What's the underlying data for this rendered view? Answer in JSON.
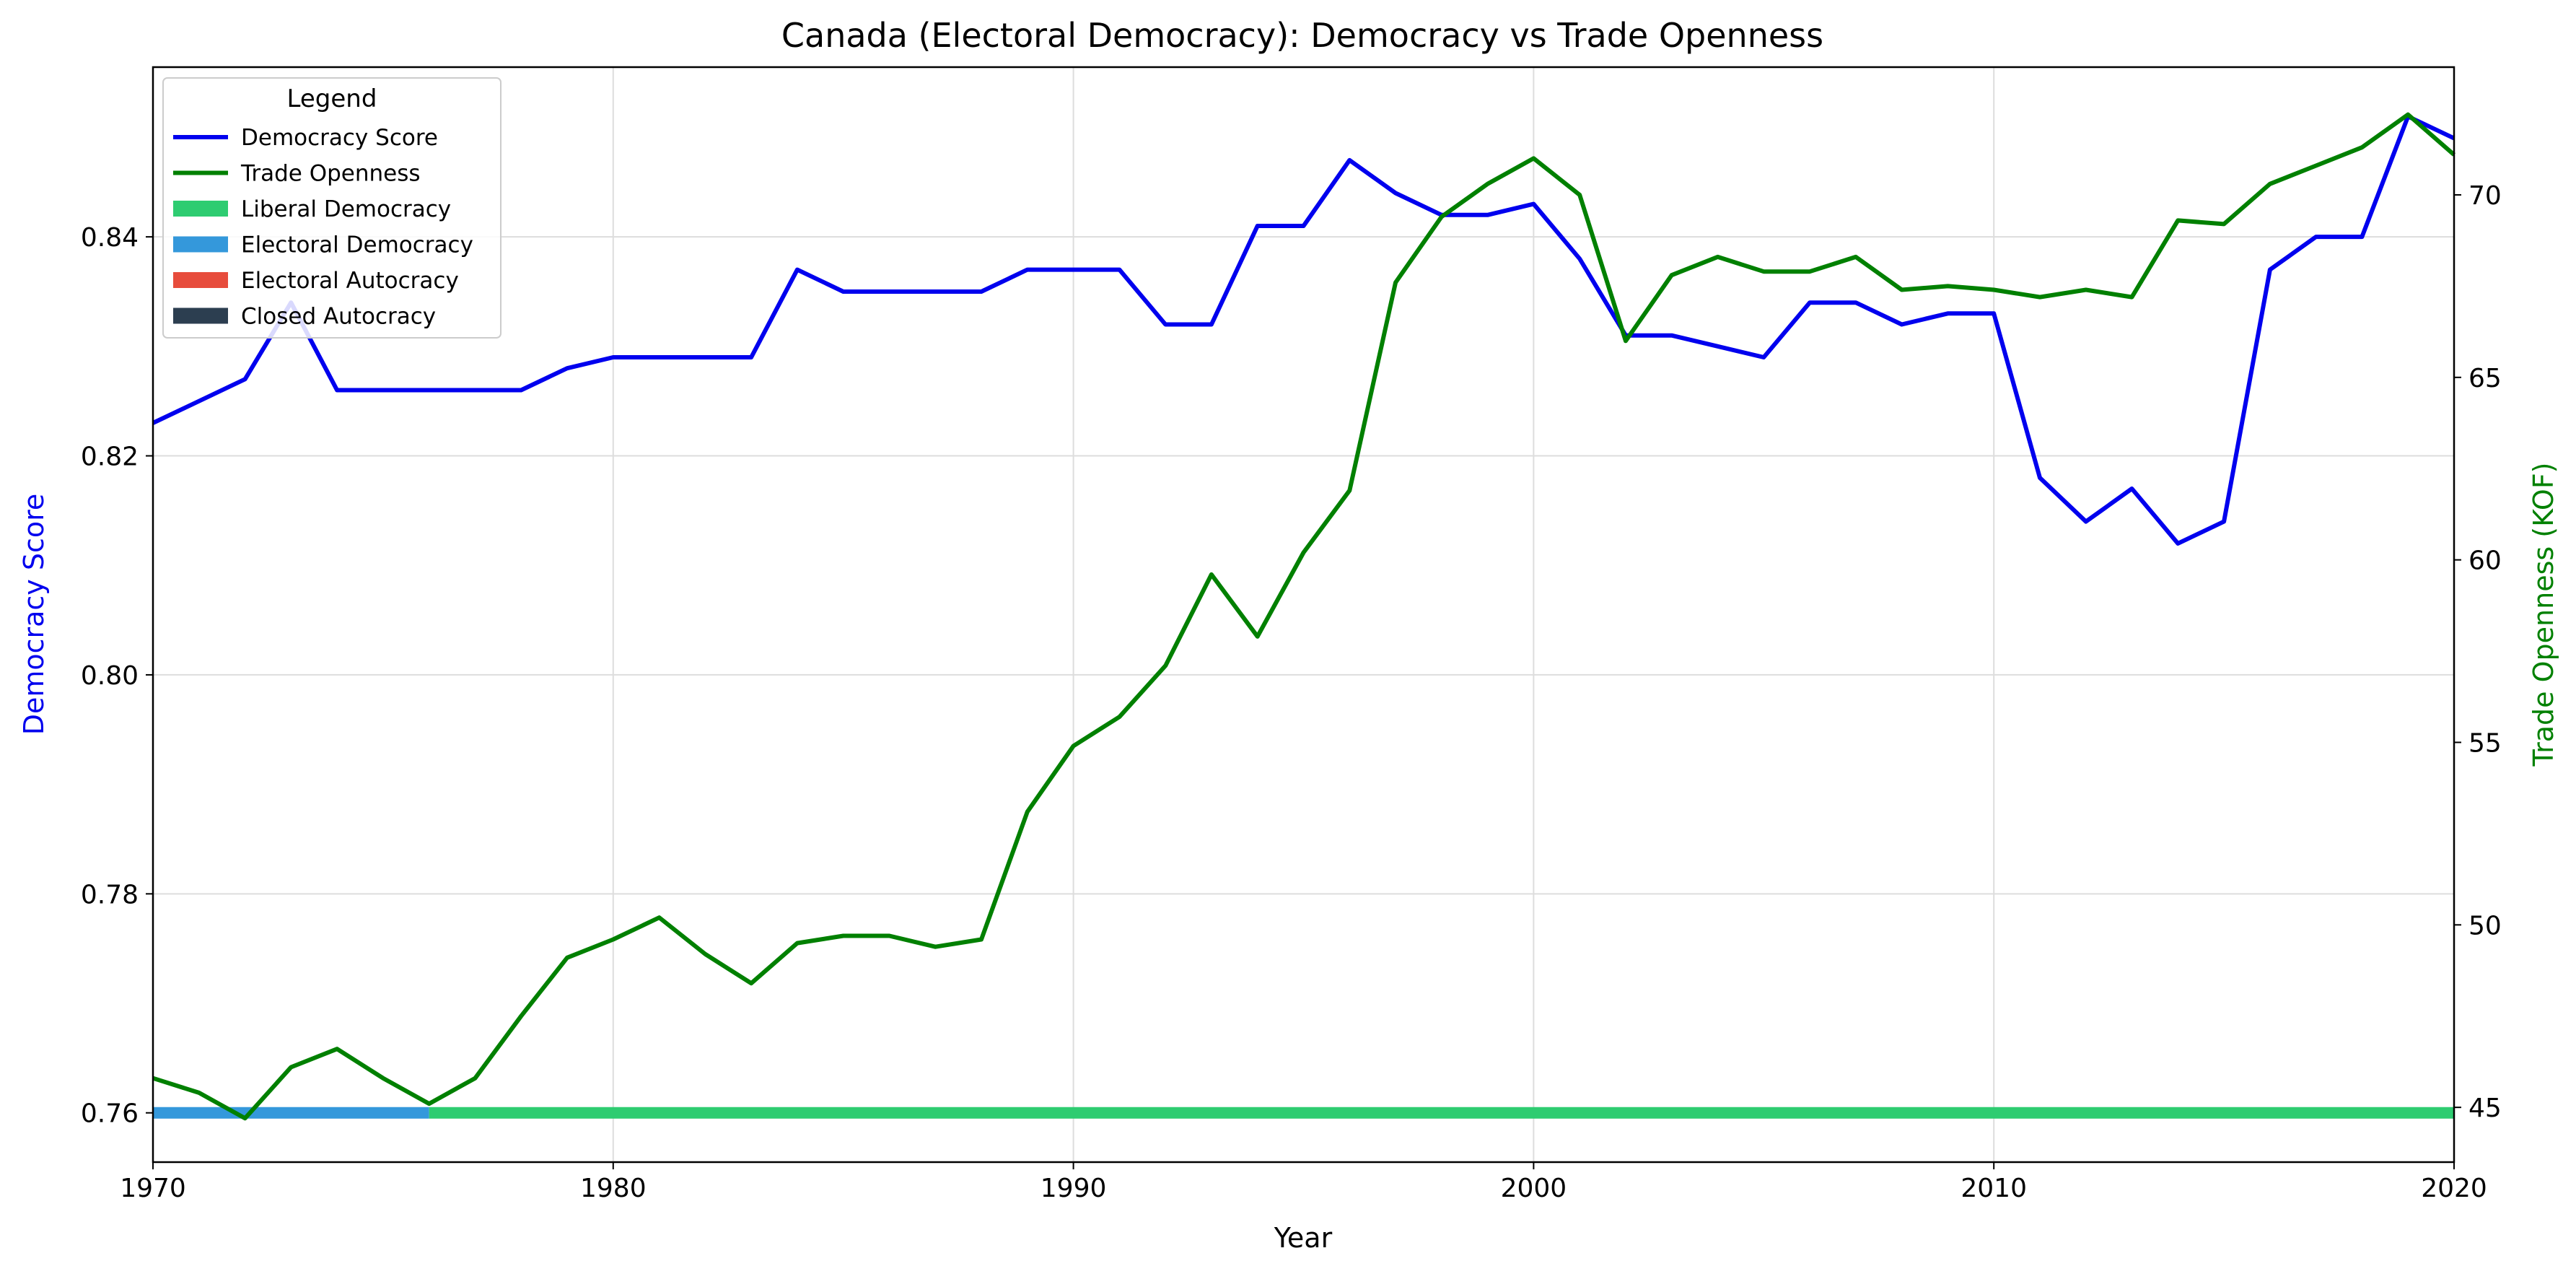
{
  "chart_data": {
    "type": "line",
    "title": "Canada (Electoral Democracy): Democracy vs Trade Openness",
    "xlabel": "Year",
    "ylabel_left": "Democracy Score",
    "ylabel_right": "Trade Openness (KOF)",
    "xlim": [
      1970,
      2020
    ],
    "ylim_left": [
      0.7555,
      0.8555
    ],
    "ylim_right": [
      43.5,
      73.5
    ],
    "x_ticks": [
      1970,
      1980,
      1990,
      2000,
      2010,
      2020
    ],
    "y_left_ticks": [
      0.76,
      0.78,
      0.8,
      0.82,
      0.84
    ],
    "y_left_tick_labels": [
      "0.76",
      "0.78",
      "0.80",
      "0.82",
      "0.84"
    ],
    "y_right_ticks": [
      45,
      50,
      55,
      60,
      65,
      70
    ],
    "grid": true,
    "legend": {
      "title": "Legend",
      "position": "top-left",
      "entries": [
        {
          "label": "Democracy Score",
          "kind": "line",
          "color": "#0000ee"
        },
        {
          "label": "Trade Openness",
          "kind": "line",
          "color": "#008000"
        },
        {
          "label": "Liberal Democracy",
          "kind": "patch",
          "color": "#2ecc71"
        },
        {
          "label": "Electoral Democracy",
          "kind": "patch",
          "color": "#3498db"
        },
        {
          "label": "Electoral Autocracy",
          "kind": "patch",
          "color": "#e74c3c"
        },
        {
          "label": "Closed Autocracy",
          "kind": "patch",
          "color": "#2c3e50"
        }
      ]
    },
    "x": [
      1970,
      1971,
      1972,
      1973,
      1974,
      1975,
      1976,
      1977,
      1978,
      1979,
      1980,
      1981,
      1982,
      1983,
      1984,
      1985,
      1986,
      1987,
      1988,
      1989,
      1990,
      1991,
      1992,
      1993,
      1994,
      1995,
      1996,
      1997,
      1998,
      1999,
      2000,
      2001,
      2002,
      2003,
      2004,
      2005,
      2006,
      2007,
      2008,
      2009,
      2010,
      2011,
      2012,
      2013,
      2014,
      2015,
      2016,
      2017,
      2018,
      2019,
      2020
    ],
    "series": [
      {
        "name": "Democracy Score",
        "axis": "left",
        "color": "#0000ee",
        "values": [
          0.823,
          0.825,
          0.827,
          0.834,
          0.826,
          0.826,
          0.826,
          0.826,
          0.826,
          0.828,
          0.829,
          0.829,
          0.829,
          0.829,
          0.837,
          0.835,
          0.835,
          0.835,
          0.835,
          0.837,
          0.837,
          0.837,
          0.832,
          0.832,
          0.841,
          0.841,
          0.847,
          0.844,
          0.842,
          0.842,
          0.843,
          0.838,
          0.831,
          0.831,
          0.83,
          0.829,
          0.834,
          0.834,
          0.832,
          0.833,
          0.833,
          0.818,
          0.814,
          0.817,
          0.812,
          0.814,
          0.837,
          0.84,
          0.84,
          0.851,
          0.849
        ]
      },
      {
        "name": "Trade Openness",
        "axis": "right",
        "color": "#008000",
        "values": [
          45.8,
          45.4,
          44.7,
          46.1,
          46.6,
          45.8,
          45.1,
          45.8,
          47.5,
          49.1,
          49.6,
          50.2,
          49.2,
          48.4,
          49.5,
          49.7,
          49.7,
          49.4,
          49.6,
          53.1,
          54.9,
          55.7,
          57.1,
          59.6,
          57.9,
          60.2,
          61.9,
          67.6,
          69.4,
          70.3,
          71.0,
          70.0,
          66.0,
          67.8,
          68.3,
          67.9,
          67.9,
          68.3,
          67.4,
          67.5,
          67.4,
          67.2,
          67.4,
          67.2,
          69.3,
          69.2,
          70.3,
          70.8,
          71.3,
          72.2,
          71.1
        ]
      }
    ],
    "regime_bands": [
      {
        "label": "Electoral Democracy",
        "start": 1970,
        "end": 1976,
        "color": "#3498db"
      },
      {
        "label": "Liberal Democracy",
        "start": 1976,
        "end": 2020,
        "color": "#2ecc71"
      }
    ]
  }
}
